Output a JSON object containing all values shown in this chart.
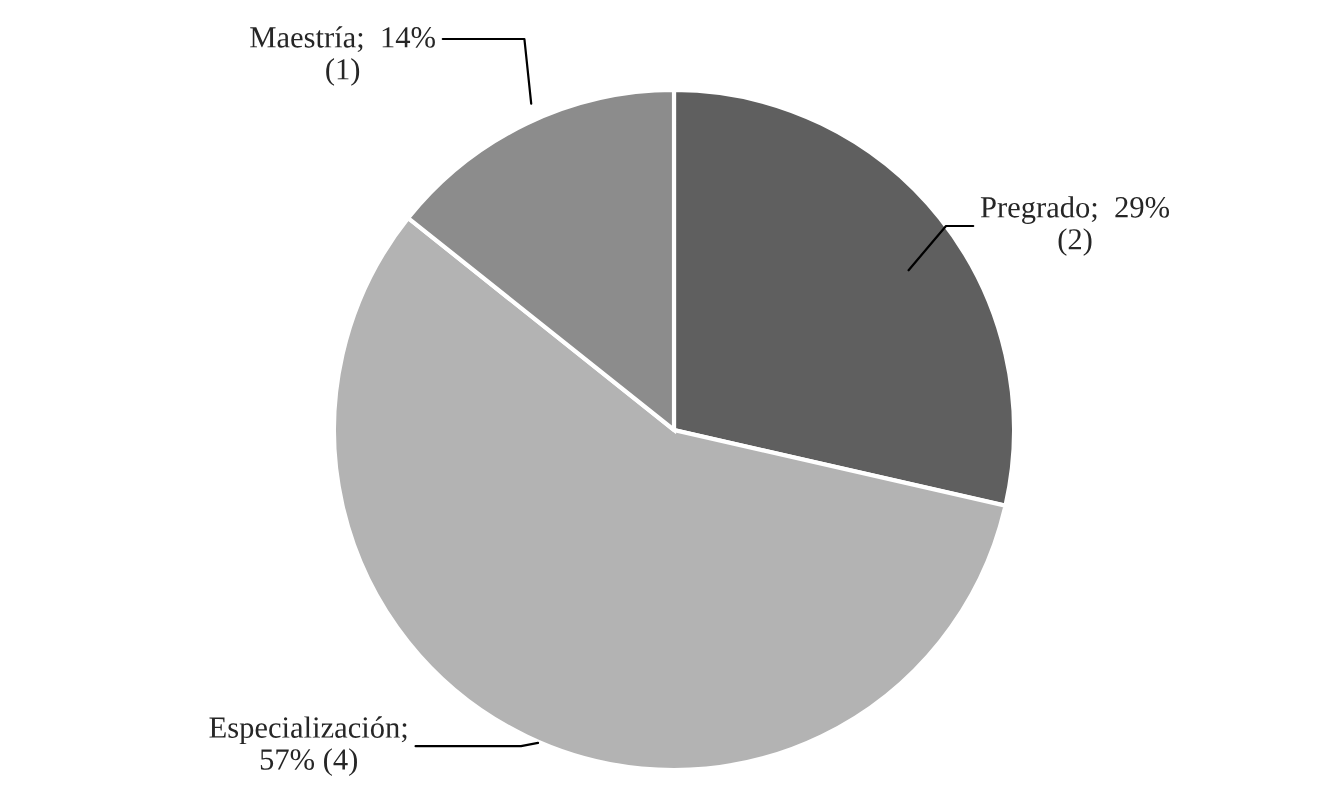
{
  "chart_data": {
    "type": "pie",
    "categories": [
      "Pregrado",
      "Especialización",
      "Maestría"
    ],
    "values": [
      2,
      4,
      1
    ],
    "value_labels": [
      ";  29%\n(2)",
      ";\n57% (4)",
      ";  14%\n(1)"
    ],
    "colors": [
      "#5f5f5f",
      "#b3b3b3",
      "#8c8c8c"
    ]
  }
}
